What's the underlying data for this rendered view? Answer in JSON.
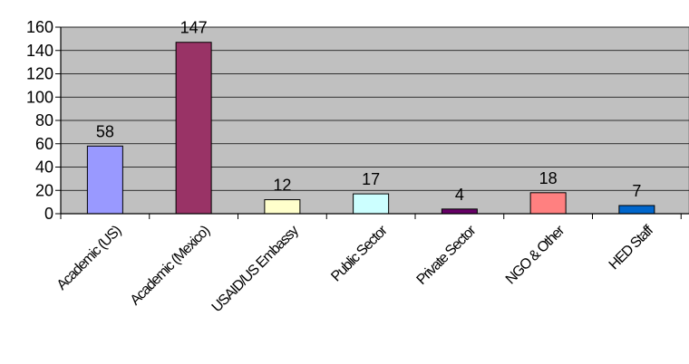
{
  "chart_data": {
    "type": "bar",
    "title": "",
    "xlabel": "",
    "ylabel": "",
    "categories": [
      "Academic (US)",
      "Academic (Mexico)",
      "USAID/US Embassy",
      "Public Sector",
      "Private Sector",
      "NGO & Other",
      "HED Staff"
    ],
    "values": [
      58,
      147,
      12,
      17,
      4,
      18,
      7
    ],
    "data_labels": [
      "58",
      "147",
      "12",
      "17",
      "4",
      "18",
      "7"
    ],
    "yticks": [
      "0",
      "20",
      "40",
      "60",
      "80",
      "100",
      "120",
      "140",
      "160"
    ],
    "ylim": [
      0,
      160
    ],
    "grid": true,
    "legend": "none",
    "colors": [
      "#9999ff",
      "#993366",
      "#ffffcc",
      "#ccffff",
      "#660066",
      "#ff8080",
      "#0066cc"
    ],
    "plot_background": "#c0c0c0"
  }
}
